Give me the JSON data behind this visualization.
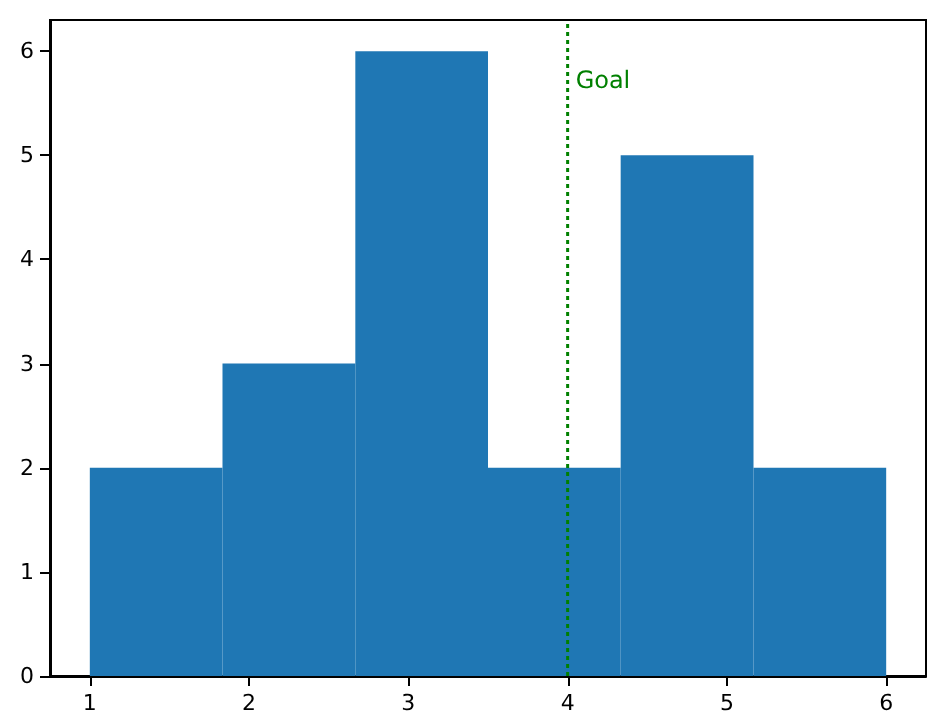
{
  "chart_data": {
    "type": "histogram",
    "bins": [
      1,
      1.833,
      2.667,
      3.5,
      4.333,
      5.167,
      6
    ],
    "values": [
      2,
      3,
      6,
      2,
      5,
      2
    ],
    "color": "#1f77b4",
    "xlim": [
      0.75,
      6.25
    ],
    "xticks": [
      1,
      2,
      3,
      4,
      5,
      6
    ],
    "ylim": [
      0,
      6.3
    ],
    "yticks": [
      0,
      1,
      2,
      3,
      4,
      5,
      6
    ],
    "grid": false,
    "ref_lines": [
      {
        "axis": "x",
        "value": 4,
        "label": "Goal",
        "color": "#008000",
        "line_style": "dotted"
      }
    ]
  }
}
